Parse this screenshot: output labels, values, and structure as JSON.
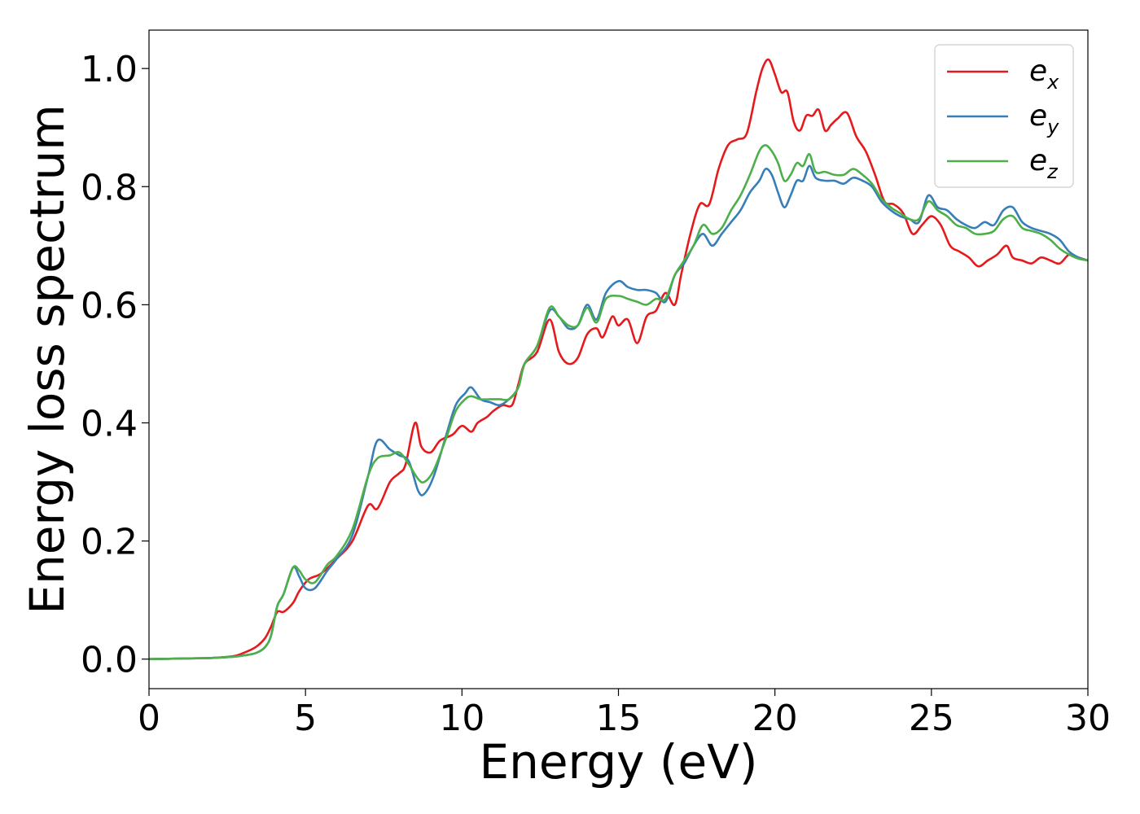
{
  "chart_data": {
    "type": "line",
    "xlabel": "Energy (eV)",
    "ylabel": "Energy loss spectrum",
    "xlim": [
      0,
      30
    ],
    "ylim": [
      -0.05,
      1.065
    ],
    "xticks": [
      0,
      5,
      10,
      15,
      20,
      25,
      30
    ],
    "yticks": [
      0.0,
      0.2,
      0.4,
      0.6,
      0.8,
      1.0
    ],
    "xtick_labels": [
      "0",
      "5",
      "10",
      "15",
      "20",
      "25",
      "30"
    ],
    "ytick_labels": [
      "0.0",
      "0.2",
      "0.4",
      "0.6",
      "0.8",
      "1.0"
    ],
    "grid": false,
    "legend_position": "top-right",
    "series": [
      {
        "name": "e_x",
        "legend_base": "e",
        "legend_sub": "x",
        "color": "#e41a1c",
        "x": [
          0,
          1,
          2,
          2.7,
          3.0,
          3.4,
          3.7,
          3.9,
          4.1,
          4.3,
          4.6,
          4.8,
          5.1,
          5.5,
          6.0,
          6.5,
          7.0,
          7.3,
          7.7,
          8.0,
          8.2,
          8.5,
          8.7,
          9.0,
          9.3,
          9.7,
          10.0,
          10.3,
          10.5,
          10.8,
          11.0,
          11.3,
          11.6,
          11.8,
          12.0,
          12.4,
          12.8,
          13.1,
          13.4,
          13.7,
          14.0,
          14.3,
          14.5,
          14.8,
          15.0,
          15.3,
          15.6,
          15.9,
          16.2,
          16.5,
          16.8,
          17.0,
          17.3,
          17.6,
          17.9,
          18.2,
          18.5,
          18.8,
          19.1,
          19.4,
          19.6,
          19.8,
          20.0,
          20.2,
          20.4,
          20.6,
          20.8,
          21.0,
          21.2,
          21.4,
          21.6,
          21.8,
          22.0,
          22.3,
          22.6,
          22.9,
          23.2,
          23.5,
          23.8,
          24.1,
          24.4,
          24.7,
          25.0,
          25.3,
          25.6,
          25.9,
          26.2,
          26.5,
          26.8,
          27.1,
          27.4,
          27.6,
          27.9,
          28.2,
          28.5,
          28.8,
          29.1,
          29.4,
          29.7,
          30.0
        ],
        "values": [
          0.0,
          0.001,
          0.002,
          0.005,
          0.01,
          0.02,
          0.035,
          0.055,
          0.08,
          0.08,
          0.095,
          0.115,
          0.135,
          0.145,
          0.17,
          0.2,
          0.26,
          0.255,
          0.3,
          0.315,
          0.33,
          0.4,
          0.36,
          0.35,
          0.37,
          0.38,
          0.395,
          0.385,
          0.4,
          0.41,
          0.42,
          0.43,
          0.43,
          0.465,
          0.5,
          0.52,
          0.575,
          0.52,
          0.5,
          0.51,
          0.55,
          0.56,
          0.545,
          0.58,
          0.565,
          0.575,
          0.535,
          0.58,
          0.59,
          0.62,
          0.6,
          0.65,
          0.72,
          0.77,
          0.77,
          0.83,
          0.87,
          0.88,
          0.89,
          0.96,
          1.0,
          1.015,
          0.99,
          0.96,
          0.96,
          0.91,
          0.895,
          0.92,
          0.92,
          0.93,
          0.895,
          0.905,
          0.915,
          0.925,
          0.885,
          0.86,
          0.82,
          0.775,
          0.77,
          0.755,
          0.72,
          0.735,
          0.75,
          0.735,
          0.7,
          0.69,
          0.68,
          0.665,
          0.675,
          0.685,
          0.7,
          0.68,
          0.675,
          0.67,
          0.68,
          0.675,
          0.67,
          0.685,
          0.68,
          0.675
        ]
      },
      {
        "name": "e_y",
        "legend_base": "e",
        "legend_sub": "y",
        "color": "#377eb8",
        "x": [
          0,
          1,
          2,
          2.7,
          3.0,
          3.4,
          3.7,
          3.9,
          4.1,
          4.3,
          4.6,
          4.8,
          5.0,
          5.3,
          5.7,
          6.0,
          6.5,
          7.0,
          7.3,
          7.7,
          8.0,
          8.3,
          8.6,
          8.8,
          9.1,
          9.5,
          9.8,
          10.1,
          10.3,
          10.6,
          10.9,
          11.2,
          11.5,
          11.8,
          12.0,
          12.4,
          12.8,
          13.1,
          13.4,
          13.7,
          14.0,
          14.3,
          14.6,
          15.0,
          15.3,
          15.6,
          15.9,
          16.2,
          16.5,
          16.8,
          17.1,
          17.4,
          17.7,
          18.0,
          18.3,
          18.6,
          18.9,
          19.2,
          19.5,
          19.7,
          19.9,
          20.1,
          20.3,
          20.5,
          20.7,
          20.9,
          21.1,
          21.3,
          21.6,
          21.9,
          22.2,
          22.5,
          22.8,
          23.1,
          23.4,
          23.7,
          24.0,
          24.3,
          24.6,
          24.9,
          25.2,
          25.5,
          25.8,
          26.1,
          26.4,
          26.7,
          27.0,
          27.3,
          27.6,
          27.9,
          28.2,
          28.5,
          28.8,
          29.1,
          29.4,
          29.7,
          30.0
        ],
        "values": [
          0.0,
          0.001,
          0.002,
          0.004,
          0.006,
          0.01,
          0.02,
          0.04,
          0.09,
          0.11,
          0.155,
          0.14,
          0.12,
          0.12,
          0.15,
          0.17,
          0.21,
          0.31,
          0.37,
          0.355,
          0.345,
          0.335,
          0.285,
          0.28,
          0.31,
          0.38,
          0.43,
          0.45,
          0.46,
          0.44,
          0.435,
          0.43,
          0.44,
          0.46,
          0.5,
          0.53,
          0.59,
          0.58,
          0.56,
          0.565,
          0.6,
          0.575,
          0.62,
          0.64,
          0.63,
          0.625,
          0.625,
          0.62,
          0.605,
          0.65,
          0.67,
          0.7,
          0.72,
          0.7,
          0.72,
          0.74,
          0.76,
          0.79,
          0.81,
          0.83,
          0.82,
          0.79,
          0.765,
          0.785,
          0.81,
          0.81,
          0.835,
          0.815,
          0.81,
          0.81,
          0.805,
          0.815,
          0.81,
          0.8,
          0.775,
          0.76,
          0.75,
          0.745,
          0.74,
          0.785,
          0.765,
          0.76,
          0.745,
          0.735,
          0.73,
          0.74,
          0.735,
          0.76,
          0.765,
          0.74,
          0.73,
          0.725,
          0.72,
          0.71,
          0.69,
          0.68,
          0.675
        ]
      },
      {
        "name": "e_z",
        "legend_base": "e",
        "legend_sub": "z",
        "color": "#4daf4a",
        "x": [
          0,
          1,
          2,
          2.7,
          3.0,
          3.4,
          3.7,
          3.9,
          4.1,
          4.3,
          4.6,
          4.8,
          5.0,
          5.3,
          5.7,
          6.0,
          6.5,
          7.0,
          7.3,
          7.7,
          8.0,
          8.3,
          8.6,
          8.8,
          9.1,
          9.5,
          9.8,
          10.1,
          10.3,
          10.6,
          10.9,
          11.2,
          11.5,
          11.8,
          12.0,
          12.4,
          12.8,
          13.1,
          13.4,
          13.7,
          14.0,
          14.3,
          14.6,
          15.0,
          15.3,
          15.6,
          15.9,
          16.2,
          16.5,
          16.8,
          17.1,
          17.4,
          17.7,
          18.0,
          18.3,
          18.6,
          18.9,
          19.2,
          19.5,
          19.7,
          19.9,
          20.1,
          20.3,
          20.5,
          20.7,
          20.9,
          21.1,
          21.3,
          21.6,
          21.9,
          22.2,
          22.5,
          22.8,
          23.1,
          23.4,
          23.7,
          24.0,
          24.3,
          24.6,
          24.9,
          25.2,
          25.5,
          25.8,
          26.1,
          26.4,
          26.7,
          27.0,
          27.3,
          27.6,
          27.9,
          28.2,
          28.5,
          28.8,
          29.1,
          29.4,
          29.7,
          30.0
        ],
        "values": [
          0.0,
          0.001,
          0.002,
          0.004,
          0.006,
          0.01,
          0.02,
          0.04,
          0.09,
          0.11,
          0.155,
          0.15,
          0.135,
          0.13,
          0.16,
          0.175,
          0.22,
          0.31,
          0.34,
          0.345,
          0.35,
          0.33,
          0.305,
          0.3,
          0.32,
          0.375,
          0.42,
          0.44,
          0.445,
          0.44,
          0.44,
          0.44,
          0.44,
          0.46,
          0.5,
          0.53,
          0.595,
          0.58,
          0.565,
          0.565,
          0.595,
          0.57,
          0.61,
          0.615,
          0.61,
          0.605,
          0.6,
          0.61,
          0.61,
          0.65,
          0.675,
          0.7,
          0.735,
          0.72,
          0.73,
          0.76,
          0.785,
          0.82,
          0.86,
          0.87,
          0.86,
          0.84,
          0.81,
          0.82,
          0.84,
          0.835,
          0.855,
          0.825,
          0.825,
          0.82,
          0.82,
          0.83,
          0.82,
          0.805,
          0.78,
          0.765,
          0.755,
          0.745,
          0.745,
          0.775,
          0.76,
          0.75,
          0.735,
          0.73,
          0.72,
          0.72,
          0.725,
          0.745,
          0.75,
          0.73,
          0.725,
          0.72,
          0.71,
          0.695,
          0.685,
          0.678,
          0.675
        ]
      }
    ]
  }
}
